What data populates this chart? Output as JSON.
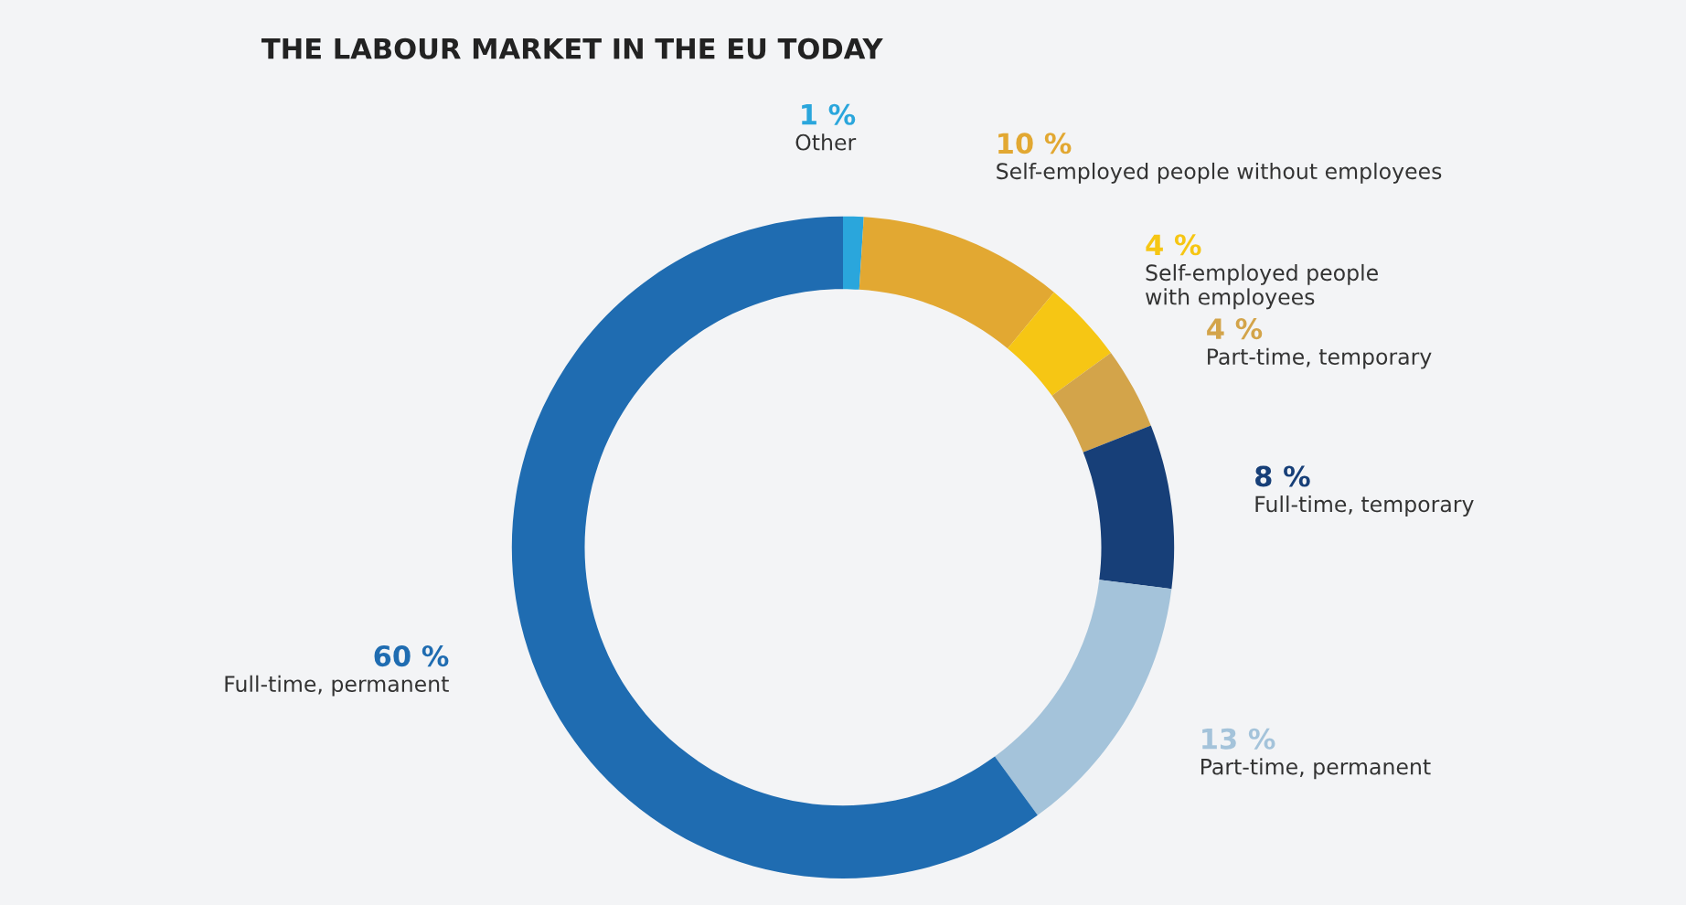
{
  "chart_data": {
    "type": "donut",
    "title": "THE LABOUR MARKET IN THE EU TODAY",
    "categories": [
      "Other",
      "Self-employed people without employees",
      "Self-employed people\nwith employees",
      "Part-time, temporary",
      "Full-time, temporary",
      "Part-time, permanent",
      "Full-time, permanent"
    ],
    "values": [
      1,
      10,
      4,
      4,
      8,
      13,
      60
    ],
    "value_labels": [
      "1 %",
      "10 %",
      "4 %",
      "4 %",
      "8 %",
      "13 %",
      "60 %"
    ],
    "colors": [
      "#2aa6dc",
      "#e2a832",
      "#f6c614",
      "#d3a44a",
      "#173f78",
      "#a4c3da",
      "#1f6cb1"
    ],
    "legend": false
  }
}
